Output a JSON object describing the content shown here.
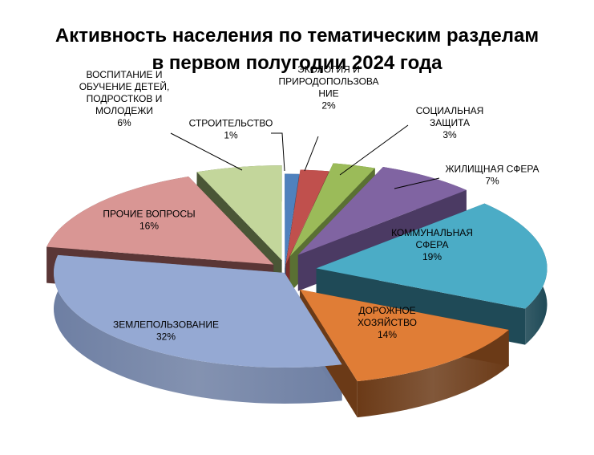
{
  "chart_data": {
    "type": "pie",
    "title_lines": [
      "Активность населения по тематическим разделам",
      "в первом полугодии 2024 года"
    ],
    "slices": [
      {
        "label_lines": [
          "СТРОИТЕЛЬСТВО"
        ],
        "value": 1,
        "value_label": "1%",
        "color": "#4F81BD",
        "side_color": "#2E4B6F"
      },
      {
        "label_lines": [
          "ЭКОЛОГИЯ И",
          "ПРИРОДОПОЛЬЗОВА",
          "НИЕ"
        ],
        "value": 2,
        "value_label": "2%",
        "color": "#C0504D",
        "side_color": "#7A2E2C"
      },
      {
        "label_lines": [
          "СОЦИАЛЬНАЯ",
          "ЗАЩИТА"
        ],
        "value": 3,
        "value_label": "3%",
        "color": "#9BBB59",
        "side_color": "#5A7033"
      },
      {
        "label_lines": [
          "ЖИЛИЩНАЯ СФЕРА"
        ],
        "value": 7,
        "value_label": "7%",
        "color": "#8064A2",
        "side_color": "#4B3A63"
      },
      {
        "label_lines": [
          "КОММУНАЛЬНАЯ",
          "СФЕРА"
        ],
        "value": 19,
        "value_label": "19%",
        "color": "#4BACC6",
        "side_color": "#1F4A57"
      },
      {
        "label_lines": [
          "ДОРОЖНОЕ",
          "ХОЗЯЙСТВО"
        ],
        "value": 14,
        "value_label": "14%",
        "color": "#E07D36",
        "side_color": "#6B3A17"
      },
      {
        "label_lines": [
          "ЗЕМЛЕПОЛЬЗОВАНИЕ"
        ],
        "value": 32,
        "value_label": "32%",
        "color": "#95A9D3",
        "side_color": "#6E7FA3"
      },
      {
        "label_lines": [
          "ПРОЧИЕ ВОПРОСЫ"
        ],
        "value": 16,
        "value_label": "16%",
        "color": "#D99694",
        "side_color": "#5A3636"
      },
      {
        "label_lines": [
          "ВОСПИТАНИЕ И",
          "ОБУЧЕНИЕ ДЕТЕЙ,",
          "ПОДРОСТКОВ И",
          "МОЛОДЕЖИ"
        ],
        "value": 6,
        "value_label": "6%",
        "color": "#C3D69B",
        "side_color": "#4A5636"
      }
    ],
    "legend": "none",
    "style": "3d-exploded"
  }
}
